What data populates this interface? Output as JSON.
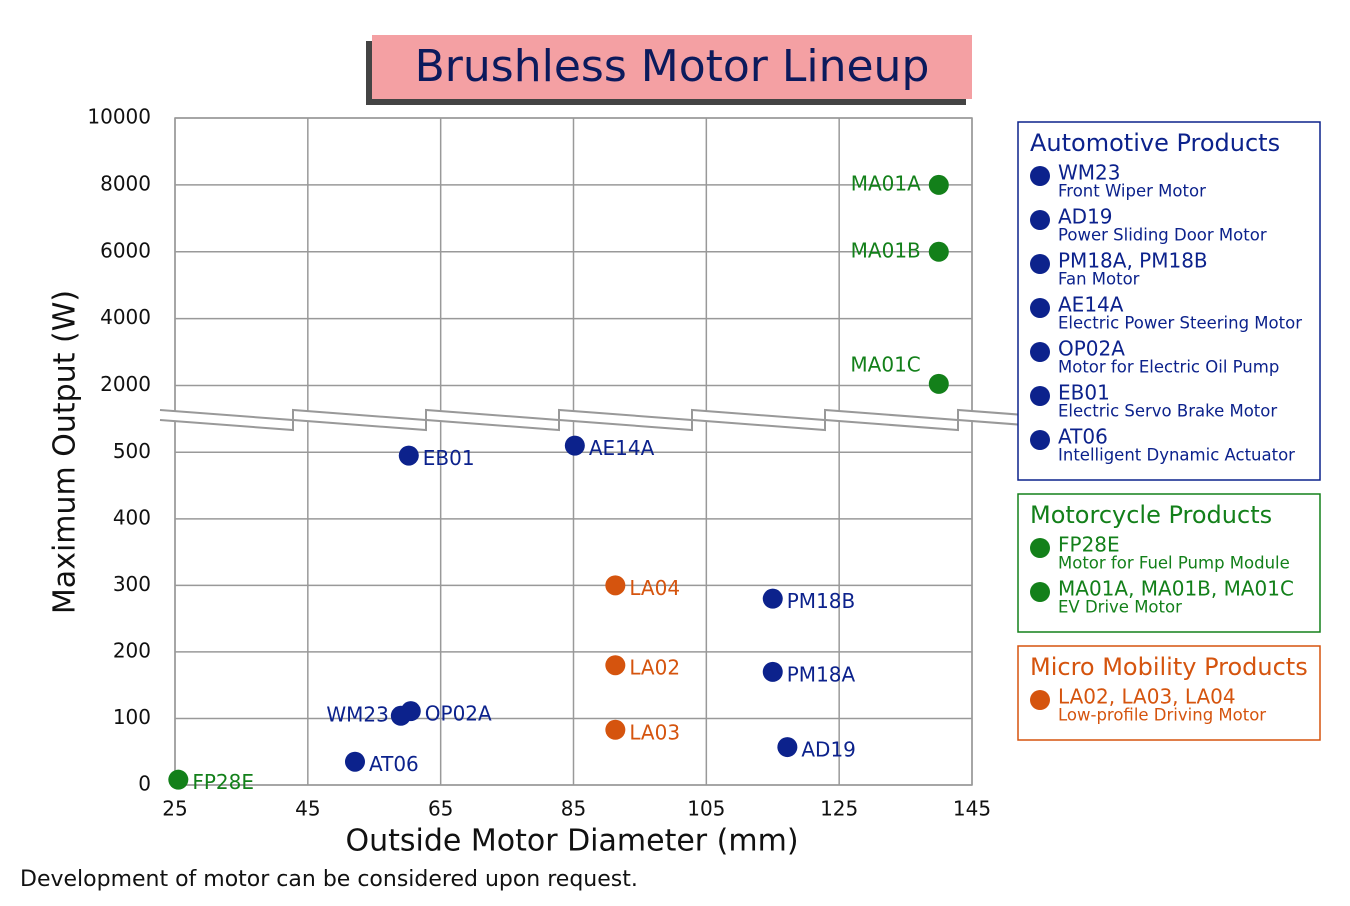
{
  "chart_data": {
    "type": "scatter",
    "title": "Brushless Motor Lineup",
    "x_label": "Outside Motor Diameter (mm)",
    "y_label": "Maximum Output (W)",
    "footnote": "Development of motor can be considered upon request.",
    "xlim": [
      25,
      145
    ],
    "xticks": [
      25,
      45,
      65,
      85,
      105,
      125,
      145
    ],
    "ylim": [
      0,
      10000
    ],
    "ybreak": [
      550,
      1000
    ],
    "yticks": [
      0,
      100,
      200,
      300,
      400,
      500,
      2000,
      4000,
      6000,
      8000,
      10000
    ],
    "grid": true,
    "series": [
      {
        "name": "Automotive Products",
        "color": "#0c228c",
        "labels": [
          "WM23",
          "AD19",
          "PM18A",
          "PM18B",
          "AE14A",
          "OP02A",
          "EB01",
          "AT06"
        ],
        "x": [
          59,
          117.2,
          115,
          115,
          85.2,
          60.5,
          60.2,
          52.1
        ],
        "values": [
          104,
          57,
          170,
          280,
          510,
          111,
          495,
          35
        ],
        "legend_items": [
          {
            "name": "WM23",
            "description": "Front Wiper Motor"
          },
          {
            "name": "AD19",
            "description": "Power Sliding Door Motor"
          },
          {
            "name": "PM18A, PM18B",
            "description": "Fan Motor"
          },
          {
            "name": "AE14A",
            "description": "Electric Power Steering Motor"
          },
          {
            "name": "OP02A",
            "description": "Motor for Electric Oil Pump"
          },
          {
            "name": "EB01",
            "description": "Electric Servo Brake Motor"
          },
          {
            "name": "AT06",
            "description": "Intelligent Dynamic Actuator"
          }
        ]
      },
      {
        "name": "Motorcycle Products",
        "color": "#13801a",
        "labels": [
          "FP28E",
          "MA01A",
          "MA01B",
          "MA01C"
        ],
        "x": [
          25.5,
          140,
          140,
          140
        ],
        "values": [
          8,
          8000,
          6000,
          2050
        ],
        "legend_items": [
          {
            "name": "FP28E",
            "description": "Motor for Fuel Pump Module"
          },
          {
            "name": "MA01A, MA01B, MA01C",
            "description": "EV Drive Motor"
          }
        ]
      },
      {
        "name": "Micro Mobility Products",
        "color": "#d5540e",
        "labels": [
          "LA02",
          "LA03",
          "LA04"
        ],
        "x": [
          91.3,
          91.3,
          91.3
        ],
        "values": [
          180,
          83,
          300
        ],
        "legend_items": [
          {
            "name": "LA02, LA03, LA04",
            "description": "Low-profile Driving Motor"
          }
        ]
      }
    ]
  }
}
